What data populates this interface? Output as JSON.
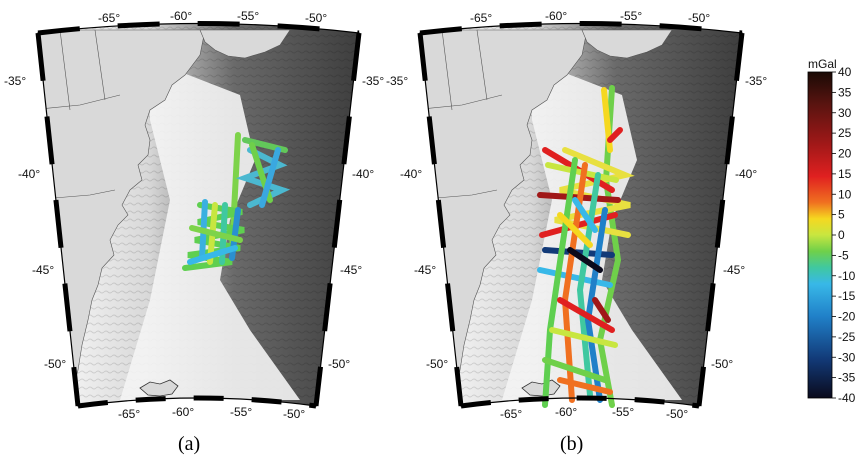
{
  "panels": [
    {
      "label": "(a)",
      "top_lon_labels": [
        "-65°",
        "-60°",
        "-55°",
        "-50°"
      ],
      "bottom_lon_labels": [
        "-65°",
        "-60°",
        "-55°",
        "-50°"
      ],
      "left_lat_labels": [
        "-35°",
        "-40°",
        "-45°",
        "-50°"
      ],
      "right_lat_labels": [
        "-35°",
        "-40°",
        "-45°",
        "-50°"
      ]
    },
    {
      "label": "(b)",
      "top_lon_labels": [
        "-65°",
        "-60°",
        "-55°",
        "-50°"
      ],
      "bottom_lon_labels": [
        "-65°",
        "-60°",
        "-55°",
        "-50°"
      ],
      "left_lat_labels": [
        "-35°",
        "-40°",
        "-45°",
        "-50°"
      ],
      "right_lat_labels": [
        "-35°",
        "-40°",
        "-45°",
        "-50°"
      ]
    }
  ],
  "colorbar": {
    "unit": "mGal",
    "ticks": [
      "40",
      "35",
      "30",
      "25",
      "20",
      "15",
      "10",
      "5",
      "0",
      "-5",
      "-10",
      "-15",
      "-20",
      "-25",
      "-30",
      "-35",
      "-40"
    ],
    "range": [
      -40,
      40
    ],
    "colors": [
      "#1a0a05",
      "#5a1410",
      "#a01818",
      "#e02020",
      "#f07020",
      "#f5d820",
      "#c8e640",
      "#6fd04a",
      "#40c8a0",
      "#38b8e8",
      "#2080c8",
      "#123a78",
      "#0a0a1c"
    ]
  },
  "colors": {
    "land": "#d9d9d9",
    "frame": "#000000"
  }
}
